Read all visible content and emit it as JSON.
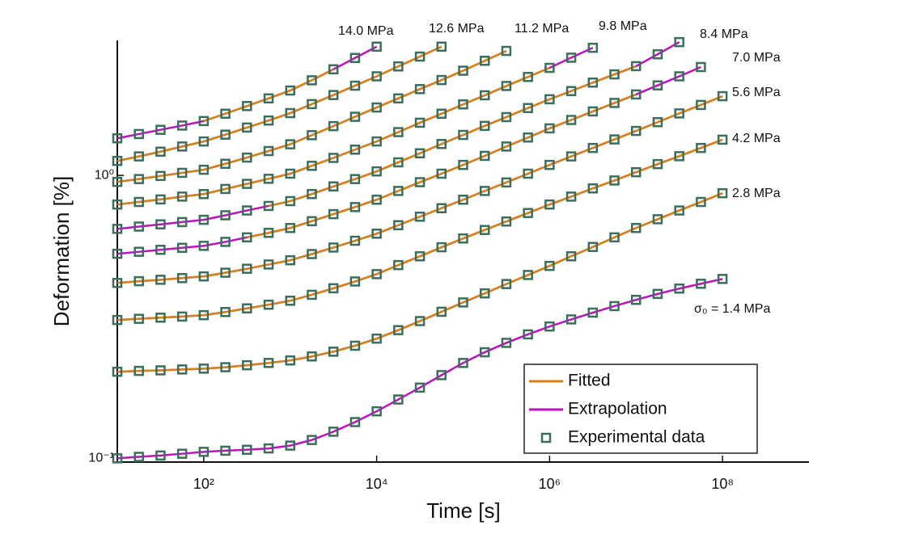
{
  "chart_data": {
    "type": "line",
    "xlabel": "Time [s]",
    "ylabel": "Deformation [%]",
    "xscale": "log",
    "yscale": "log",
    "xlim": [
      10,
      1000000000
    ],
    "ylim": [
      0.097,
      3
    ],
    "xticks": [
      {
        "value": 100,
        "label": "10²"
      },
      {
        "value": 10000,
        "label": "10⁴"
      },
      {
        "value": 1000000,
        "label": "10⁶"
      },
      {
        "value": 100000000,
        "label": "10⁸"
      }
    ],
    "yticks": [
      {
        "value": 0.1,
        "label": "10⁻¹"
      },
      {
        "value": 1,
        "label": "10⁰"
      }
    ],
    "legend": [
      {
        "name": "Fitted",
        "color": "#d9820f"
      },
      {
        "name": "Extrapolation",
        "color": "#c010c0"
      },
      {
        "name": "Experimental data",
        "color": "#3b6e5c"
      }
    ],
    "x": [
      10,
      17.78,
      31.62,
      56.23,
      100,
      177.8,
      316.2,
      562.3,
      1000,
      1778,
      3162,
      5623,
      10000,
      17783,
      31623,
      56234,
      100000,
      177828,
      316228,
      562341,
      1000000,
      1778279,
      3162278,
      5623413,
      10000000,
      17782794,
      31622777,
      56234133,
      100000000
    ],
    "series": [
      {
        "name": "σ₀ = 1.4 MPa",
        "values": [
          0.1,
          0.1012,
          0.1023,
          0.1038,
          0.1054,
          0.1064,
          0.1072,
          0.1084,
          0.1109,
          0.1161,
          0.1242,
          0.1343,
          0.1466,
          0.1614,
          0.1778,
          0.1968,
          0.2173,
          0.2371,
          0.2559,
          0.2742,
          0.2924,
          0.3097,
          0.3273,
          0.3451,
          0.3631,
          0.3811,
          0.3981,
          0.414,
          0.4305
        ]
      },
      {
        "name": "2.8 MPa",
        "fitted_xlim": [
          10,
          100000000
        ],
        "values": [
          0.2023,
          0.2037,
          0.2046,
          0.2061,
          0.2075,
          0.2099,
          0.2133,
          0.2173,
          0.2218,
          0.2291,
          0.2382,
          0.25,
          0.2649,
          0.2838,
          0.3055,
          0.3296,
          0.3556,
          0.3828,
          0.413,
          0.4446,
          0.4786,
          0.5176,
          0.5585,
          0.6039,
          0.6516,
          0.6998,
          0.7516,
          0.8054,
          0.865
        ]
      },
      {
        "name": "4.2 MPa",
        "fitted_xlim": [
          10,
          100000000
        ],
        "values": [
          0.3083,
          0.3112,
          0.3141,
          0.317,
          0.3206,
          0.3289,
          0.3388,
          0.3491,
          0.3606,
          0.3784,
          0.399,
          0.4217,
          0.4477,
          0.4819,
          0.5176,
          0.5572,
          0.5984,
          0.6412,
          0.6871,
          0.7362,
          0.7889,
          0.8414,
          0.8995,
          0.9594,
          1.026,
          1.096,
          1.169,
          1.25,
          1.337
        ]
      },
      {
        "name": "5.6 MPa",
        "fitted_xlim": [
          10,
          100000000
        ],
        "values": [
          0.4169,
          0.4227,
          0.4276,
          0.4335,
          0.4395,
          0.4529,
          0.4677,
          0.4842,
          0.5012,
          0.5272,
          0.5559,
          0.5875,
          0.6223,
          0.6668,
          0.7145,
          0.7656,
          0.8204,
          0.881,
          0.9441,
          1.014,
          1.089,
          1.167,
          1.25,
          1.34,
          1.436,
          1.542,
          1.656,
          1.774,
          1.905
        ]
      },
      {
        "name": "7.0 MPa",
        "fitted_xlim": [
          316.2,
          10000000
        ],
        "values": [
          0.5284,
          0.537,
          0.5458,
          0.5546,
          0.5636,
          0.5821,
          0.6039,
          0.6266,
          0.6516,
          0.6887,
          0.7295,
          0.7727,
          0.8204,
          0.881,
          0.9462,
          1.014,
          1.089,
          1.172,
          1.265,
          1.361,
          1.466,
          1.57,
          1.683,
          1.803,
          1.932,
          2.08,
          2.239,
          2.415,
          null
        ]
      },
      {
        "name": "8.4 MPa",
        "fitted_xlim": [
          562.3,
          10000000
        ],
        "values": [
          0.6471,
          0.6592,
          0.6714,
          0.6839,
          0.6966,
          0.7228,
          0.7516,
          0.7798,
          0.811,
          0.859,
          0.9141,
          0.9705,
          1.033,
          1.112,
          1.197,
          1.291,
          1.39,
          1.496,
          1.607,
          1.73,
          1.858,
          1.986,
          2.128,
          2.275,
          2.432,
          2.679,
          2.958,
          null,
          null
        ]
      },
      {
        "name": "9.8 MPa",
        "fitted_xlim": [
          10,
          1000000
        ],
        "values": [
          0.7889,
          0.8054,
          0.8222,
          0.8414,
          0.859,
          0.8954,
          0.9333,
          0.9727,
          1.014,
          1.081,
          1.153,
          1.233,
          1.318,
          1.422,
          1.535,
          1.652,
          1.782,
          1.919,
          2.07,
          2.228,
          2.399,
          2.606,
          2.825,
          null,
          null,
          null,
          null,
          null,
          null
        ]
      },
      {
        "name": "11.2 MPa",
        "fitted_xlim": [
          10,
          316228
        ],
        "values": [
          0.9484,
          0.9705,
          0.9954,
          1.021,
          1.047,
          1.099,
          1.156,
          1.219,
          1.288,
          1.387,
          1.493,
          1.611,
          1.738,
          1.871,
          2.018,
          2.173,
          2.344,
          2.541,
          2.754,
          null,
          null,
          null,
          null,
          null,
          null,
          null,
          null,
          null,
          null
        ]
      },
      {
        "name": "12.6 MPa",
        "fitted_xlim": [
          10,
          56234
        ],
        "values": [
          1.125,
          1.167,
          1.213,
          1.265,
          1.318,
          1.393,
          1.476,
          1.563,
          1.66,
          1.786,
          1.923,
          2.075,
          2.239,
          2.427,
          2.63,
          2.851,
          null,
          null,
          null,
          null,
          null,
          null,
          null,
          null,
          null,
          null,
          null,
          null,
          null
        ]
      },
      {
        "name": "14.0 MPa",
        "fitted_xlim": [
          100,
          3162
        ],
        "values": [
          1.352,
          1.4,
          1.449,
          1.5,
          1.556,
          1.652,
          1.758,
          1.871,
          1.995,
          2.168,
          2.371,
          2.6,
          2.851,
          null,
          null,
          null,
          null,
          null,
          null,
          null,
          null,
          null,
          null,
          null,
          null,
          null,
          null,
          null,
          null
        ]
      }
    ]
  }
}
